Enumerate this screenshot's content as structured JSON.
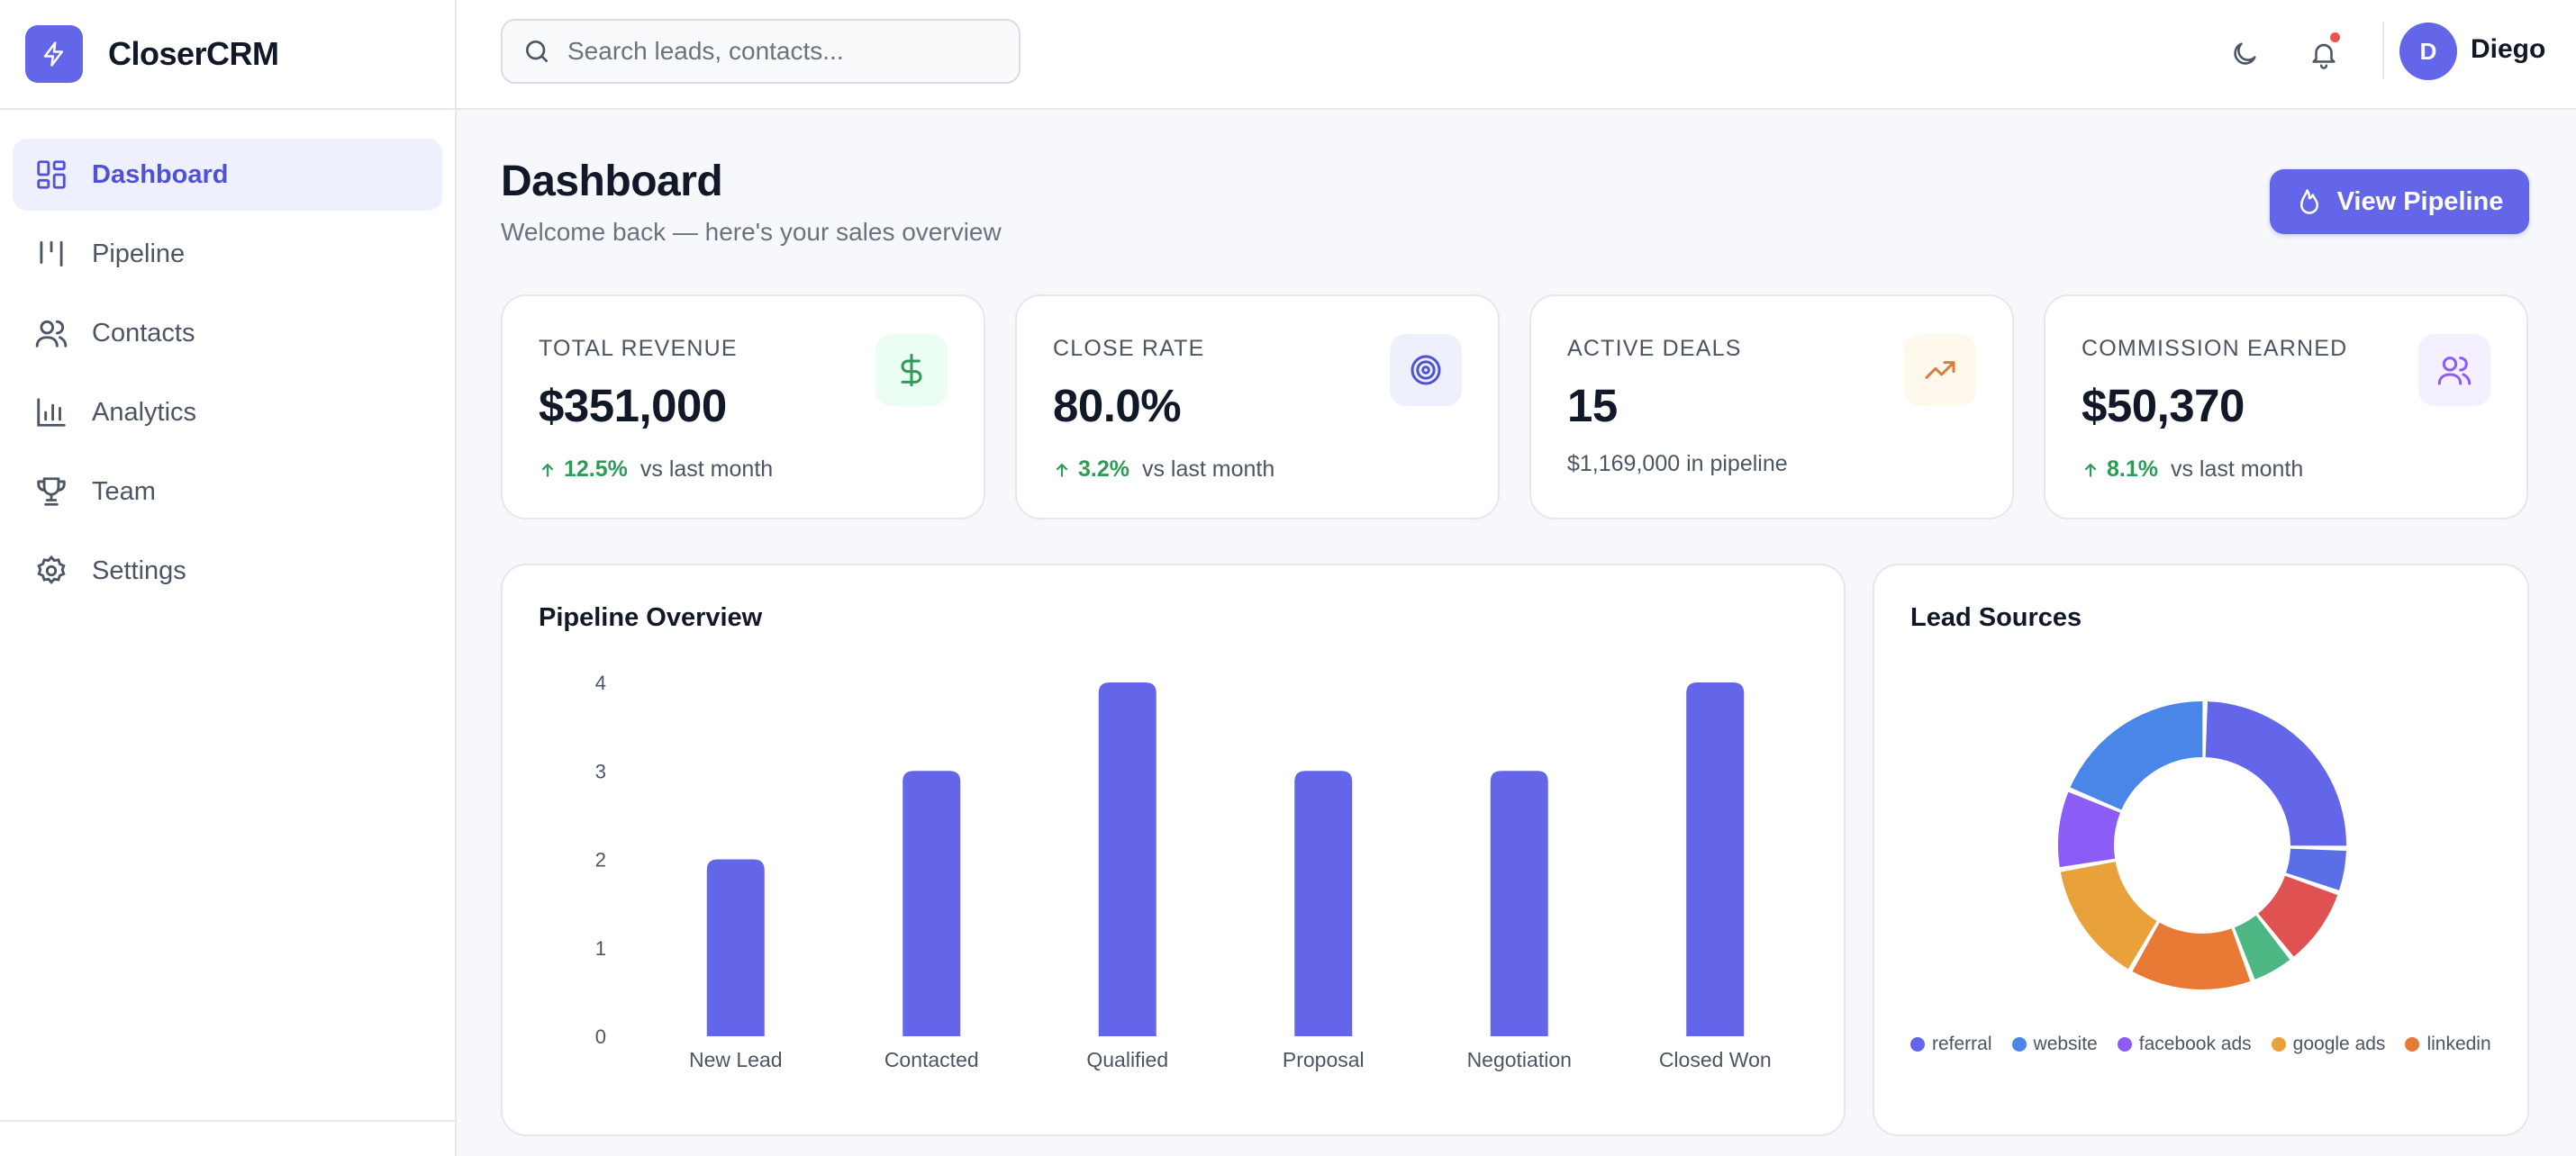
{
  "brand": {
    "name": "CloserCRM",
    "icon": "lightning-bolt-icon",
    "color": "#6366e8"
  },
  "sidebar": {
    "items": [
      {
        "label": "Dashboard",
        "icon": "dashboard-grid-icon",
        "active": true
      },
      {
        "label": "Pipeline",
        "icon": "pipeline-columns-icon",
        "active": false
      },
      {
        "label": "Contacts",
        "icon": "users-icon",
        "active": false
      },
      {
        "label": "Analytics",
        "icon": "bar-chart-icon",
        "active": false
      },
      {
        "label": "Team",
        "icon": "trophy-icon",
        "active": false
      },
      {
        "label": "Settings",
        "icon": "gear-icon",
        "active": false
      }
    ]
  },
  "header": {
    "search_placeholder": "Search leads, contacts...",
    "theme_icon": "moon-icon",
    "notification_icon": "bell-icon",
    "notification_dot_color": "#ef5350",
    "user": {
      "initial": "D",
      "name": "Diego"
    }
  },
  "page": {
    "title": "Dashboard",
    "subtitle": "Welcome back — here's your sales overview",
    "primary_button": {
      "label": "View Pipeline",
      "icon": "flame-icon"
    }
  },
  "stats": [
    {
      "label": "TOTAL REVENUE",
      "value": "$351,000",
      "trend": "12.5%",
      "trend_suffix": "vs last month",
      "icon": "dollar-icon",
      "icon_color": "#2e9b57",
      "icon_bg": "#ecfdf3"
    },
    {
      "label": "CLOSE RATE",
      "value": "80.0%",
      "trend": "3.2%",
      "trend_suffix": "vs last month",
      "icon": "target-icon",
      "icon_color": "#4f52d9",
      "icon_bg": "#eef0fe"
    },
    {
      "label": "ACTIVE DEALS",
      "value": "15",
      "note": "$1,169,000 in pipeline",
      "icon": "trending-up-icon",
      "icon_color": "#e07b39",
      "icon_bg": "#fff8ec"
    },
    {
      "label": "COMMISSION EARNED",
      "value": "$50,370",
      "trend": "8.1%",
      "trend_suffix": "vs last month",
      "icon": "users-icon",
      "icon_color": "#8b5cf6",
      "icon_bg": "#f5f0ff"
    }
  ],
  "pipeline_card": {
    "title": "Pipeline Overview"
  },
  "lead_card": {
    "title": "Lead Sources"
  },
  "chart_data": [
    {
      "type": "bar",
      "title": "Pipeline Overview",
      "categories": [
        "New Lead",
        "Contacted",
        "Qualified",
        "Proposal",
        "Negotiation",
        "Closed Won"
      ],
      "values": [
        2,
        3,
        4,
        3,
        3,
        4
      ],
      "ylim": [
        0,
        4
      ],
      "yticks": [
        0,
        1,
        2,
        3,
        4
      ],
      "grid": false,
      "color": "#6366e8"
    },
    {
      "type": "pie",
      "title": "Lead Sources",
      "donut": true,
      "slices": [
        {
          "name": "",
          "value": 25,
          "color": "#6366e8"
        },
        {
          "name": "",
          "value": 5,
          "color": "#5a6fe6"
        },
        {
          "name": "",
          "value": 9,
          "color": "#e05252"
        },
        {
          "name": "",
          "value": 5,
          "color": "#4cb782"
        },
        {
          "name": "",
          "value": 14,
          "color": "#e87a35"
        },
        {
          "name": "",
          "value": 14,
          "color": "#e9a23b"
        },
        {
          "name": "",
          "value": 9,
          "color": "#8b5cf6"
        },
        {
          "name": "",
          "value": 19,
          "color": "#4a86e8"
        }
      ],
      "legend": [
        {
          "name": "referral",
          "color": "#6366e8"
        },
        {
          "name": "website",
          "color": "#4a86e8"
        },
        {
          "name": "facebook ads",
          "color": "#8b5cf6"
        },
        {
          "name": "google ads",
          "color": "#e9a23b"
        },
        {
          "name": "linkedin",
          "color": "#e87a35"
        }
      ],
      "legend_position": "bottom"
    }
  ]
}
